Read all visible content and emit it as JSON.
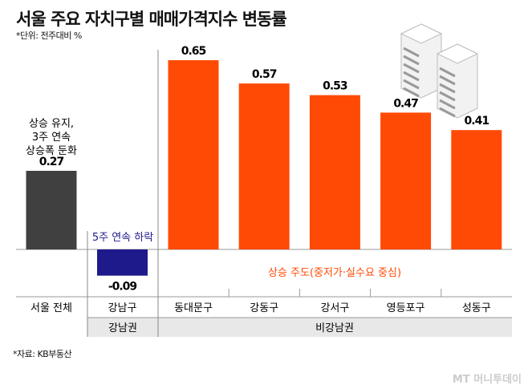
{
  "title": "서울 주요 자치구별 매매가격지수 변동률",
  "unit_note": "*단위: 전주대비 %",
  "source_note": "*자료: KB부동산",
  "watermark": "MT 머니투데이",
  "colors": {
    "seoul": "#404040",
    "gangnam": "#1f1a8c",
    "others": "#ff4a05",
    "group_bg": "#e8e8e8",
    "annot_orange": "#ff4a05",
    "annot_blue": "#1f1a8c"
  },
  "chart_data": {
    "type": "bar",
    "title": "서울 주요 자치구별 매매가격지수 변동률",
    "xlabel": "",
    "ylabel": "전주대비 %",
    "categories": [
      "서울 전체",
      "강남구",
      "동대문구",
      "강동구",
      "강서구",
      "영등포구",
      "성동구"
    ],
    "values": [
      0.27,
      -0.09,
      0.65,
      0.57,
      0.53,
      0.47,
      0.41
    ],
    "value_labels": [
      "0.27",
      "-0.09",
      "0.65",
      "0.57",
      "0.53",
      "0.47",
      "0.41"
    ],
    "groups": [
      {
        "label": "강남권",
        "categories": [
          "강남구"
        ]
      },
      {
        "label": "비강남권",
        "categories": [
          "동대문구",
          "강동구",
          "강서구",
          "영등포구",
          "성동구"
        ]
      }
    ],
    "ylim": [
      -0.12,
      0.7
    ],
    "grid": false,
    "annotations": {
      "seoul": [
        "상승 유지,",
        "3주 연속",
        "상승폭 둔화"
      ],
      "gangnam": "5주 연속 하락",
      "others": "상승 주도(중저가·실수요 중심)"
    }
  }
}
